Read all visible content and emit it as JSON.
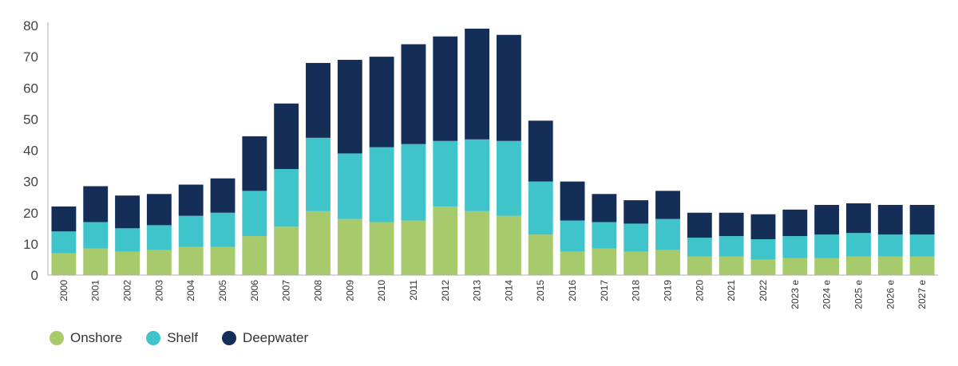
{
  "chart_data": {
    "type": "bar",
    "stacked": true,
    "categories": [
      "2000",
      "2001",
      "2002",
      "2003",
      "2004",
      "2005",
      "2006",
      "2007",
      "2008",
      "2009",
      "2010",
      "2011",
      "2012",
      "2013",
      "2014",
      "2015",
      "2016",
      "2017",
      "2018",
      "2019",
      "2020",
      "2021",
      "2022",
      "2023 e",
      "2024 e",
      "2025 e",
      "2026 e",
      "2027 e"
    ],
    "series": [
      {
        "name": "Onshore",
        "color": "#a6ca6c",
        "values": [
          7,
          8.5,
          7.5,
          8,
          9,
          9,
          12.5,
          15.5,
          20.5,
          18,
          17,
          17.5,
          22,
          20.5,
          19,
          13,
          7.5,
          8.5,
          7.5,
          8,
          6,
          6,
          5,
          5.5,
          5.5,
          6,
          6,
          6
        ]
      },
      {
        "name": "Shelf",
        "color": "#40c4cc",
        "values": [
          7,
          8.5,
          7.5,
          8,
          10,
          11,
          14.5,
          18.5,
          23.5,
          21,
          24,
          24.5,
          21,
          23,
          24,
          17,
          10,
          8.5,
          9,
          10,
          6,
          6.5,
          6.5,
          7,
          7.5,
          7.5,
          7,
          7
        ]
      },
      {
        "name": "Deepwater",
        "color": "#142e57",
        "values": [
          8,
          11.5,
          10.5,
          10,
          10,
          11,
          17.5,
          21,
          24,
          30,
          29,
          32,
          33.5,
          35.5,
          34,
          19.5,
          12.5,
          9,
          7.5,
          9,
          8,
          7.5,
          8,
          8.5,
          9.5,
          9.5,
          9.5,
          9.5
        ]
      }
    ],
    "yticks": [
      0,
      10,
      20,
      30,
      40,
      50,
      60,
      70,
      80
    ],
    "ylim": [
      0,
      80
    ],
    "xlabel": "",
    "ylabel": "",
    "title": "",
    "grid": false,
    "legend_position": "bottom-left"
  }
}
